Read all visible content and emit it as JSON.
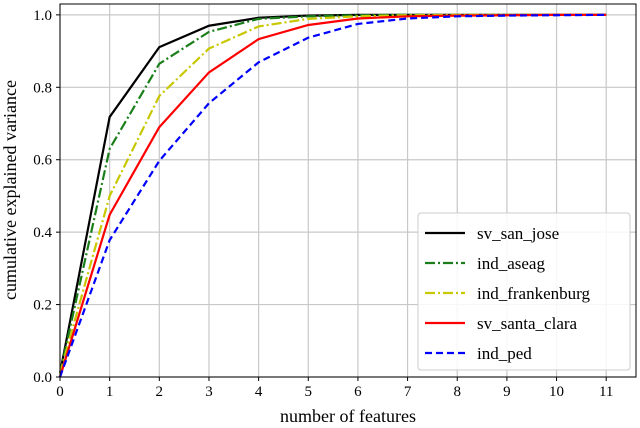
{
  "chart_data": {
    "type": "line",
    "xlabel": "number of features",
    "ylabel": "cumulative explained variance",
    "xlim": [
      0,
      11.6
    ],
    "ylim": [
      0,
      1.03
    ],
    "grid": true,
    "legend": "bottom-right",
    "x": [
      0,
      1,
      2,
      3,
      4,
      5,
      6,
      7,
      8,
      9,
      10,
      11
    ],
    "xticks": [
      "0",
      "1",
      "2",
      "3",
      "4",
      "5",
      "6",
      "7",
      "8",
      "9",
      "10",
      "11"
    ],
    "yticks": [
      "0.0",
      "0.2",
      "0.4",
      "0.6",
      "0.8",
      "1.0"
    ],
    "series": [
      {
        "name": "sv_san_jose",
        "color": "#000000",
        "dash": "solid",
        "values": [
          0.01,
          0.718,
          0.911,
          0.97,
          0.992,
          0.998,
          1.0,
          1.0,
          1.0,
          1.0,
          1.0,
          1.0
        ]
      },
      {
        "name": "ind_aseag",
        "color": "#1a7f1a",
        "dash": "dashdot",
        "values": [
          0.01,
          0.63,
          0.865,
          0.953,
          0.989,
          0.996,
          0.999,
          1.0,
          1.0,
          1.0,
          1.0,
          1.0
        ]
      },
      {
        "name": "ind_frankenburg",
        "color": "#c8c800",
        "dash": "dashdot",
        "values": [
          0.01,
          0.5,
          0.776,
          0.907,
          0.968,
          0.989,
          0.996,
          0.999,
          1.0,
          1.0,
          1.0,
          1.0
        ]
      },
      {
        "name": "sv_santa_clara",
        "color": "#ff0000",
        "dash": "solid",
        "values": [
          0.0,
          0.448,
          0.69,
          0.841,
          0.933,
          0.972,
          0.99,
          0.996,
          0.998,
          0.999,
          1.0,
          1.0
        ]
      },
      {
        "name": "ind_ped",
        "color": "#0000ff",
        "dash": "dashed",
        "values": [
          0.0,
          0.378,
          0.597,
          0.756,
          0.869,
          0.937,
          0.975,
          0.99,
          0.996,
          0.998,
          0.999,
          1.0
        ]
      }
    ]
  }
}
